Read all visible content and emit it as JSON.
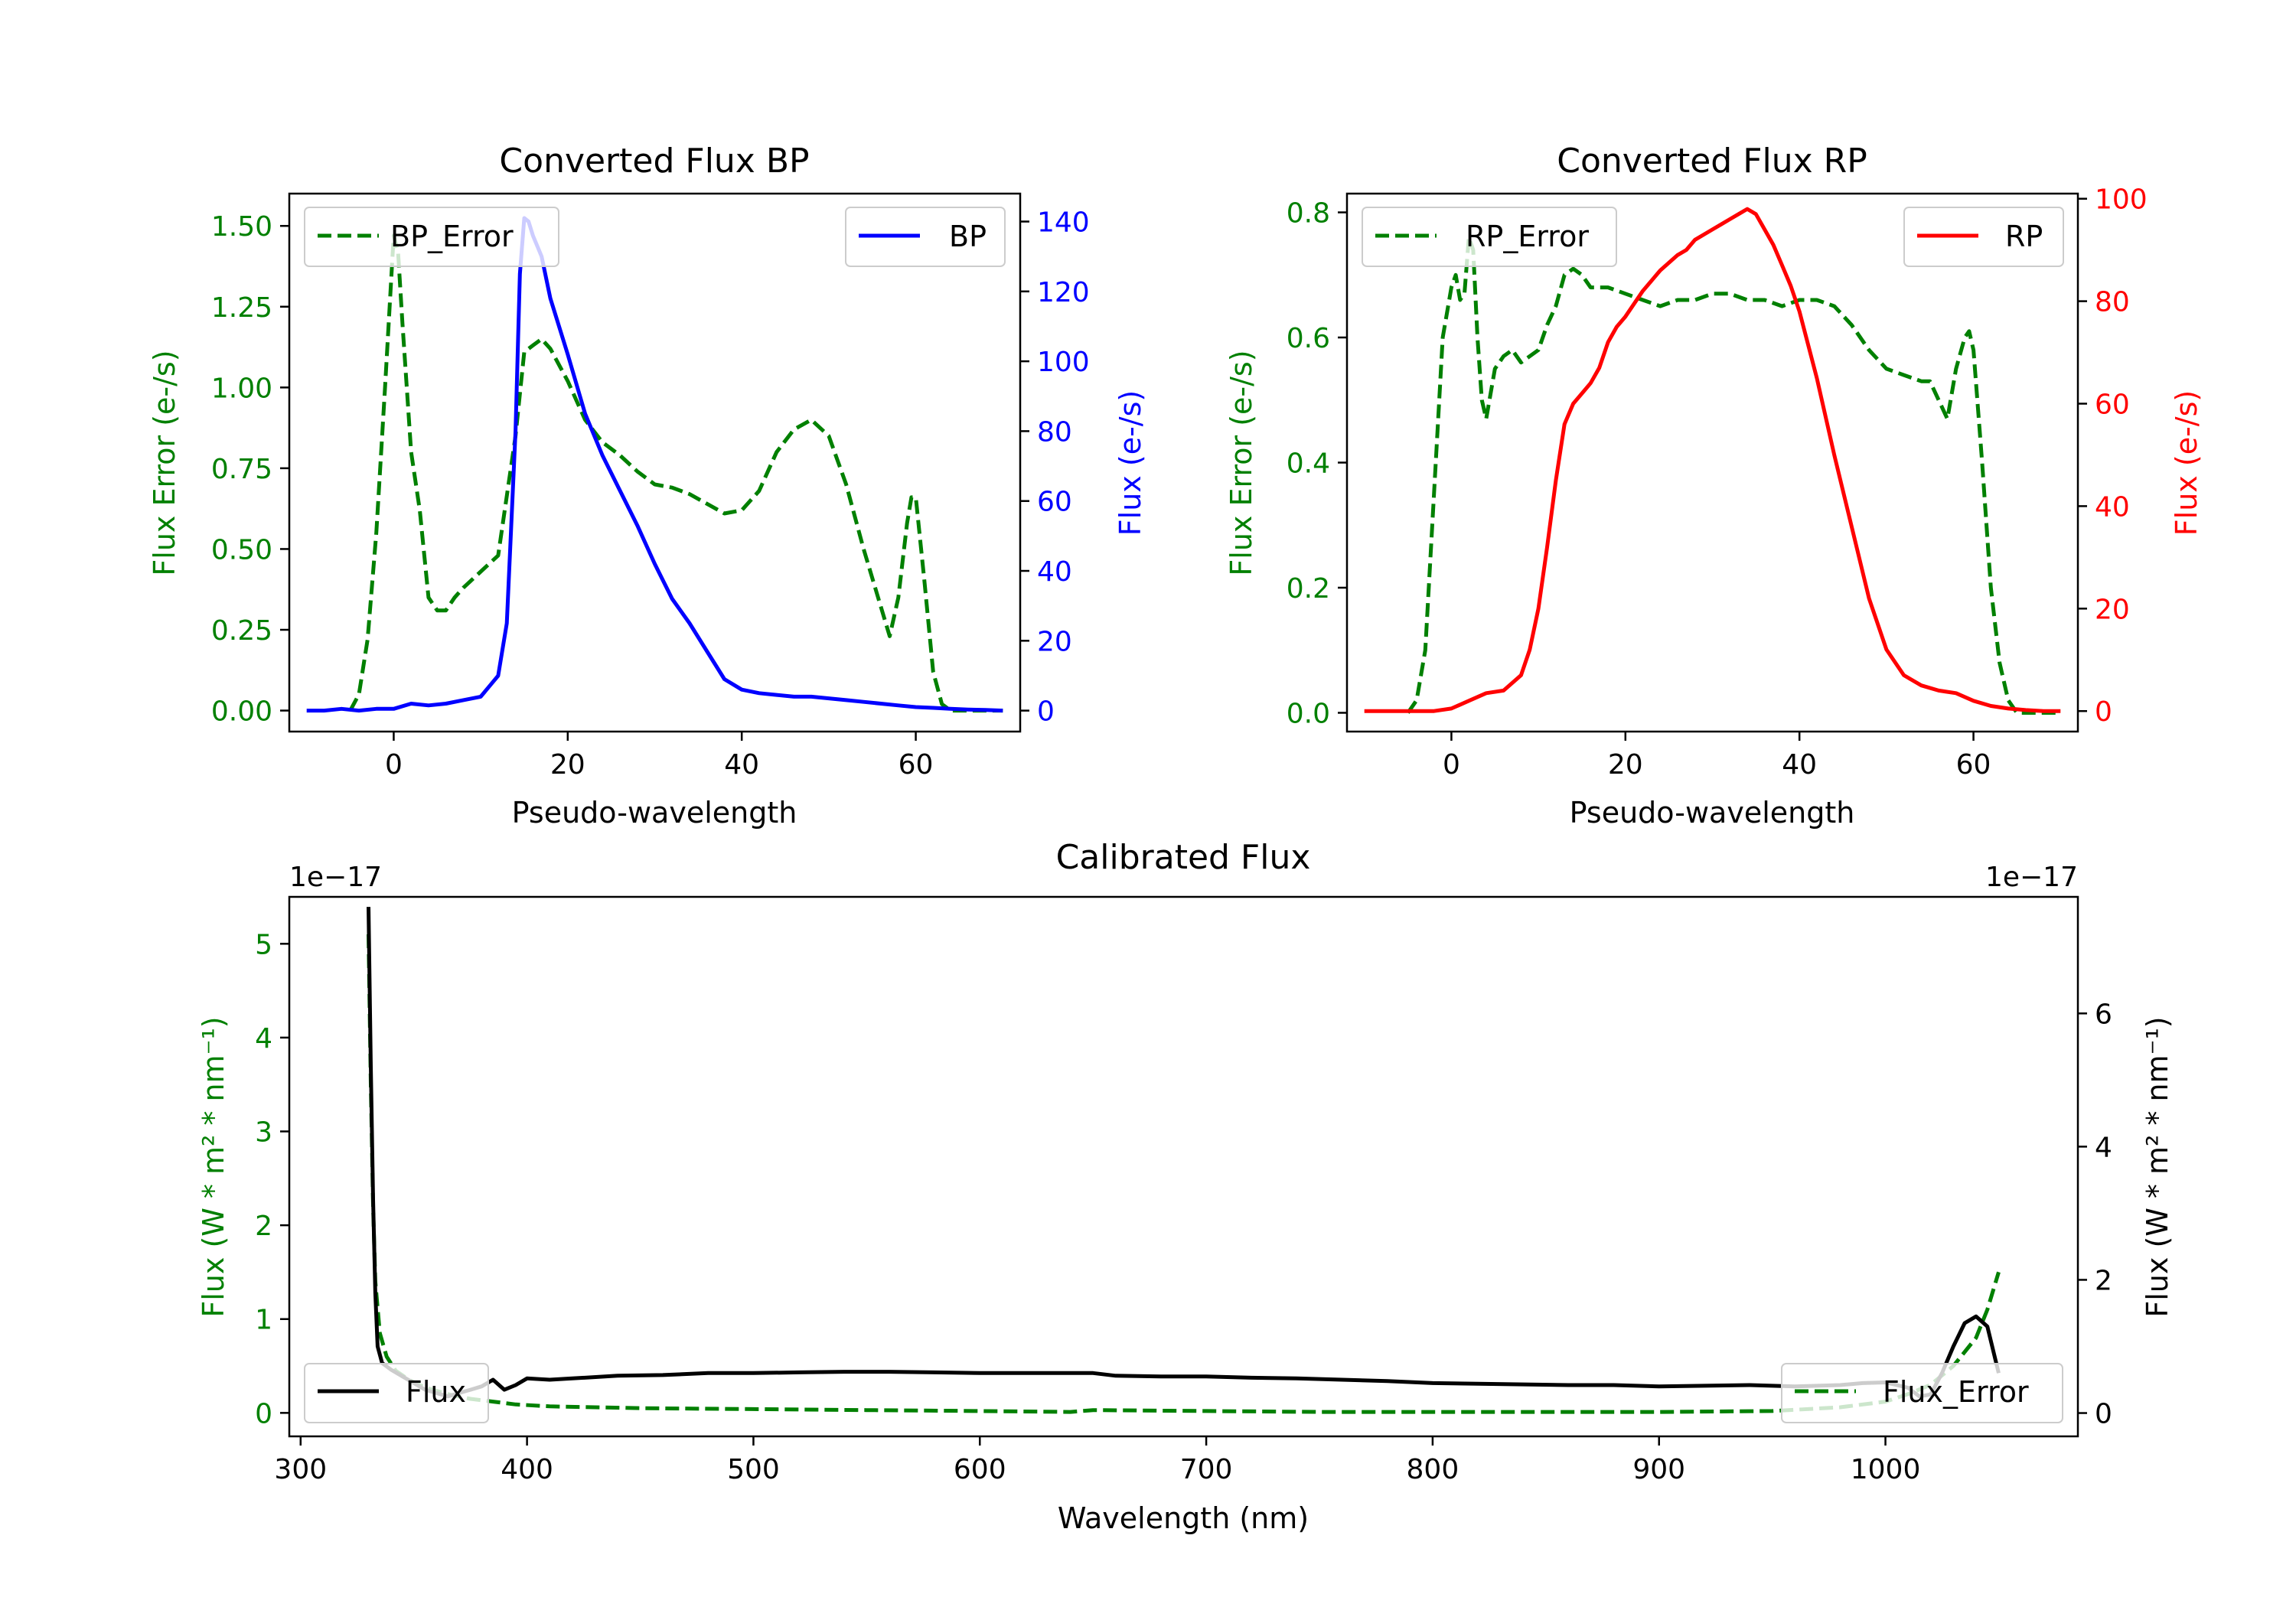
{
  "colors": {
    "green": "#008000",
    "blue": "#0000ff",
    "red": "#ff0000",
    "black": "#000000"
  },
  "chart_data": [
    {
      "id": "bp",
      "type": "line",
      "title": "Converted Flux BP",
      "xlabel": "Pseudo-wavelength",
      "xlim": [
        -12,
        72
      ],
      "xticks": [
        0,
        20,
        40,
        60
      ],
      "left_axis": {
        "label": "Flux Error (e-/s)",
        "color_key": "green",
        "ylim": [
          -0.065,
          1.6
        ],
        "ticks": [
          "0.00",
          "0.25",
          "0.50",
          "0.75",
          "1.00",
          "1.25",
          "1.50"
        ]
      },
      "right_axis": {
        "label": "Flux (e-/s)",
        "color_key": "blue",
        "ylim": [
          -6,
          148
        ],
        "ticks": [
          "0",
          "20",
          "40",
          "60",
          "80",
          "100",
          "120",
          "140"
        ]
      },
      "series": [
        {
          "name": "BP_Error",
          "axis": "left",
          "style": "dashed",
          "color_key": "green",
          "legend": "top-left",
          "x": [
            -5,
            -4,
            -3,
            -2,
            -1,
            0,
            0.5,
            1,
            2,
            3,
            4,
            5,
            6,
            7,
            8,
            10,
            12,
            14,
            15,
            16,
            17,
            18,
            20,
            22,
            24,
            26,
            28,
            30,
            32,
            34,
            36,
            38,
            40,
            42,
            44,
            46,
            48,
            50,
            52,
            54,
            56,
            57,
            58,
            59,
            59.5,
            60,
            61,
            62,
            63,
            64,
            65,
            66,
            67,
            68,
            69,
            70
          ],
          "values": [
            0.0,
            0.05,
            0.22,
            0.55,
            1.0,
            1.47,
            1.42,
            1.2,
            0.8,
            0.62,
            0.35,
            0.31,
            0.31,
            0.35,
            0.38,
            0.43,
            0.48,
            0.85,
            1.11,
            1.13,
            1.15,
            1.12,
            1.02,
            0.9,
            0.83,
            0.79,
            0.74,
            0.7,
            0.69,
            0.67,
            0.64,
            0.61,
            0.62,
            0.68,
            0.8,
            0.87,
            0.9,
            0.85,
            0.7,
            0.5,
            0.32,
            0.23,
            0.35,
            0.58,
            0.66,
            0.66,
            0.4,
            0.12,
            0.02,
            0.0,
            0.0,
            0.0,
            0.0,
            0.0,
            0.0,
            0.0
          ]
        },
        {
          "name": "BP",
          "axis": "right",
          "style": "solid",
          "color_key": "blue",
          "legend": "top-right",
          "x": [
            -10,
            -8,
            -6,
            -4,
            -2,
            0,
            2,
            4,
            6,
            8,
            10,
            11,
            12,
            13,
            14,
            14.5,
            15,
            15.5,
            16,
            17,
            18,
            20,
            22,
            24,
            26,
            28,
            30,
            32,
            34,
            36,
            38,
            40,
            42,
            44,
            46,
            48,
            50,
            52,
            54,
            56,
            58,
            60,
            62,
            64,
            66,
            68,
            70
          ],
          "values": [
            0,
            0,
            0.5,
            0,
            0.5,
            0.5,
            2,
            1.5,
            2,
            3,
            4,
            7,
            10,
            25,
            80,
            125,
            141,
            140,
            136,
            130,
            118,
            102,
            85,
            73,
            63,
            53,
            42,
            32,
            25,
            17,
            9,
            6,
            5,
            4.5,
            4,
            4,
            3.5,
            3,
            2.5,
            2,
            1.5,
            1,
            0.8,
            0.5,
            0.3,
            0.2,
            0
          ]
        }
      ]
    },
    {
      "id": "rp",
      "type": "line",
      "title": "Converted Flux RP",
      "xlabel": "Pseudo-wavelength",
      "xlim": [
        -12,
        72
      ],
      "xticks": [
        0,
        20,
        40,
        60
      ],
      "left_axis": {
        "label": "Flux Error (e-/s)",
        "color_key": "green",
        "ylim": [
          -0.03,
          0.83
        ],
        "ticks": [
          "0.0",
          "0.2",
          "0.4",
          "0.6",
          "0.8"
        ]
      },
      "right_axis": {
        "label": "Flux (e-/s)",
        "color_key": "red",
        "ylim": [
          -4,
          101
        ],
        "ticks": [
          "0",
          "20",
          "40",
          "60",
          "80",
          "100"
        ]
      },
      "series": [
        {
          "name": "RP_Error",
          "axis": "left",
          "style": "dashed",
          "color_key": "green",
          "legend": "top-left",
          "x": [
            -5,
            -4,
            -3,
            -2,
            -1,
            0,
            0.5,
            1,
            1.5,
            2,
            2.5,
            3,
            3.5,
            4,
            5,
            6,
            7,
            8,
            9,
            10,
            11,
            12,
            13,
            14,
            15,
            16,
            18,
            20,
            22,
            24,
            26,
            28,
            30,
            32,
            34,
            36,
            38,
            40,
            42,
            44,
            46,
            48,
            50,
            52,
            54,
            55,
            56,
            57,
            58,
            59,
            59.5,
            60,
            61,
            62,
            63,
            64,
            65,
            66,
            68,
            70
          ],
          "values": [
            0.0,
            0.02,
            0.1,
            0.35,
            0.6,
            0.68,
            0.7,
            0.66,
            0.67,
            0.76,
            0.74,
            0.6,
            0.5,
            0.47,
            0.55,
            0.57,
            0.58,
            0.56,
            0.57,
            0.58,
            0.62,
            0.65,
            0.7,
            0.71,
            0.7,
            0.68,
            0.68,
            0.67,
            0.66,
            0.65,
            0.66,
            0.66,
            0.67,
            0.67,
            0.66,
            0.66,
            0.65,
            0.66,
            0.66,
            0.65,
            0.62,
            0.58,
            0.55,
            0.54,
            0.53,
            0.53,
            0.5,
            0.47,
            0.55,
            0.6,
            0.61,
            0.58,
            0.4,
            0.2,
            0.08,
            0.02,
            0.0,
            0.0,
            0.0,
            0.0
          ]
        },
        {
          "name": "RP",
          "axis": "right",
          "style": "solid",
          "color_key": "red",
          "legend": "top-right",
          "x": [
            -10,
            -6,
            -4,
            -2,
            0,
            2,
            4,
            6,
            8,
            9,
            10,
            11,
            12,
            13,
            14,
            15,
            16,
            17,
            18,
            19,
            20,
            22,
            24,
            26,
            27,
            28,
            29,
            30,
            31,
            32,
            33,
            34,
            35,
            36,
            37,
            38,
            39,
            40,
            42,
            44,
            46,
            48,
            50,
            52,
            54,
            56,
            58,
            60,
            62,
            64,
            66,
            68,
            70
          ],
          "values": [
            0,
            0,
            0,
            0,
            0.5,
            2,
            3.5,
            4,
            7,
            12,
            20,
            32,
            45,
            56,
            60,
            62,
            64,
            67,
            72,
            75,
            77,
            82,
            86,
            89,
            90,
            92,
            93,
            94,
            95,
            96,
            97,
            98,
            97,
            94,
            91,
            87,
            83,
            78,
            65,
            50,
            36,
            22,
            12,
            7,
            5,
            4,
            3.5,
            2,
            1,
            0.5,
            0.2,
            0,
            0
          ]
        }
      ]
    },
    {
      "id": "calibrated",
      "type": "line",
      "title": "Calibrated Flux",
      "xlabel": "Wavelength (nm)",
      "xlim": [
        295,
        1085
      ],
      "xticks": [
        300,
        400,
        500,
        600,
        700,
        800,
        900,
        1000
      ],
      "left_axis": {
        "label": "Flux (W * m² * nm⁻¹)",
        "color_key": "green",
        "ylim": [
          -0.25,
          5.5
        ],
        "ticks": [
          "0",
          "1",
          "2",
          "3",
          "4",
          "5"
        ],
        "offset": "1e−17"
      },
      "right_axis": {
        "label": "Flux (W * m² * nm⁻¹)",
        "color_key": "black",
        "ylim": [
          -0.35,
          7.75
        ],
        "ticks": [
          "0",
          "2",
          "4",
          "6"
        ],
        "offset": "1e−17"
      },
      "series": [
        {
          "name": "Flux_Error",
          "axis": "left",
          "style": "dashed",
          "color_key": "green",
          "legend": "bottom-right",
          "x": [
            330,
            331,
            332,
            333,
            335,
            338,
            342,
            348,
            355,
            365,
            375,
            385,
            395,
            410,
            450,
            500,
            550,
            600,
            640,
            650,
            700,
            750,
            800,
            850,
            900,
            950,
            980,
            1000,
            1010,
            1020,
            1030,
            1040,
            1045,
            1050
          ],
          "values": [
            5.1,
            3.5,
            2.2,
            1.4,
            0.85,
            0.6,
            0.45,
            0.35,
            0.27,
            0.2,
            0.15,
            0.12,
            0.09,
            0.07,
            0.05,
            0.04,
            0.03,
            0.02,
            0.01,
            0.03,
            0.02,
            0.01,
            0.01,
            0.01,
            0.01,
            0.02,
            0.06,
            0.12,
            0.2,
            0.3,
            0.5,
            0.8,
            1.1,
            1.5
          ]
        },
        {
          "name": "Flux",
          "axis": "right",
          "style": "solid",
          "color_key": "black",
          "legend": "bottom-left",
          "x": [
            330,
            331,
            332,
            333,
            334,
            336,
            340,
            345,
            350,
            355,
            360,
            365,
            370,
            375,
            380,
            385,
            390,
            395,
            400,
            410,
            420,
            440,
            460,
            480,
            500,
            520,
            540,
            560,
            580,
            600,
            620,
            640,
            650,
            660,
            680,
            700,
            720,
            740,
            760,
            780,
            800,
            820,
            840,
            860,
            880,
            900,
            920,
            940,
            960,
            980,
            990,
            1000,
            1010,
            1015,
            1020,
            1025,
            1030,
            1035,
            1040,
            1045,
            1050
          ],
          "values": [
            7.6,
            5.2,
            3.2,
            1.8,
            1.0,
            0.75,
            0.65,
            0.55,
            0.45,
            0.35,
            0.3,
            0.25,
            0.3,
            0.35,
            0.4,
            0.5,
            0.35,
            0.42,
            0.52,
            0.5,
            0.52,
            0.56,
            0.57,
            0.6,
            0.6,
            0.61,
            0.62,
            0.62,
            0.61,
            0.6,
            0.6,
            0.6,
            0.6,
            0.56,
            0.55,
            0.55,
            0.53,
            0.52,
            0.5,
            0.48,
            0.45,
            0.44,
            0.43,
            0.42,
            0.42,
            0.4,
            0.41,
            0.42,
            0.4,
            0.42,
            0.45,
            0.46,
            0.38,
            0.25,
            0.28,
            0.6,
            1.0,
            1.35,
            1.45,
            1.3,
            0.6
          ]
        }
      ]
    }
  ]
}
